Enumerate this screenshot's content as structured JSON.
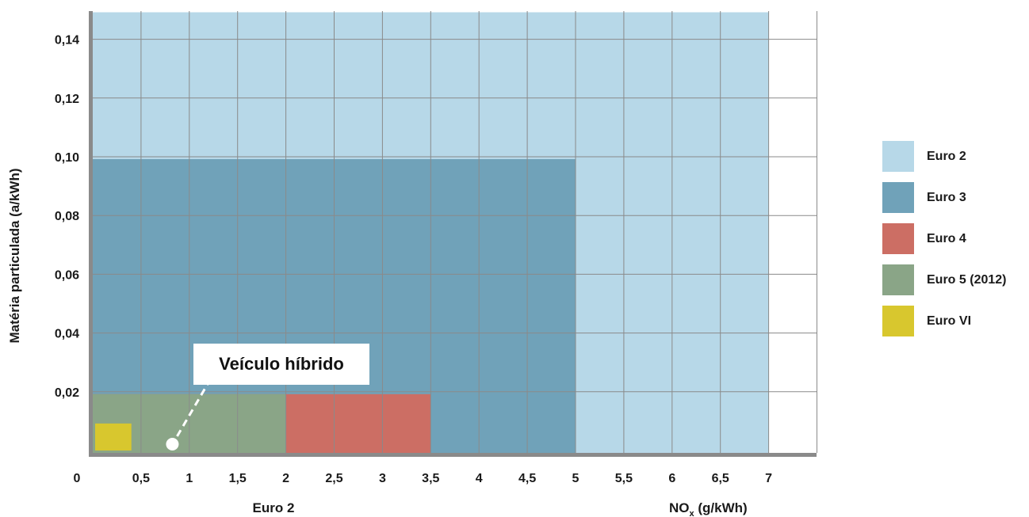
{
  "chart_data": {
    "type": "area",
    "title": "",
    "xlabel_main": "NO",
    "xlabel_sub": "x",
    "xlabel_rest": " (g/kWh)",
    "x_secondary_label": "Euro 2",
    "ylabel": "Matéria particulada (a/kWh)",
    "xlim": [
      0,
      7.5
    ],
    "ylim": [
      0,
      0.15
    ],
    "x_ticks": [
      "0",
      "0,5",
      "1",
      "1,5",
      "2",
      "2,5",
      "3",
      "3,5",
      "4",
      "4,5",
      "5",
      "5,5",
      "6",
      "6,5",
      "7"
    ],
    "y_ticks": [
      "0,02",
      "0,04",
      "0,06",
      "0,08",
      "0,10",
      "0,12",
      "0,14"
    ],
    "grid": true,
    "regions": [
      {
        "name": "Euro 2",
        "nox_max": 7.0,
        "pm_max": 0.15,
        "color": "#b7d8e8"
      },
      {
        "name": "Euro 3",
        "nox_max": 5.0,
        "pm_max": 0.1,
        "color": "#70a2b9"
      },
      {
        "name": "Euro 4",
        "nox_max": 3.5,
        "pm_max": 0.02,
        "color": "#cc6e64"
      },
      {
        "name": "Euro 5 (2012)",
        "nox_max": 2.0,
        "pm_max": 0.02,
        "color": "#8aa587"
      },
      {
        "name": "Euro VI",
        "nox_max": 0.4,
        "pm_max": 0.01,
        "color": "#d8c72e"
      }
    ],
    "points": [
      {
        "label": "Veículo híbrido",
        "nox": 0.8,
        "pm": 0.007
      }
    ],
    "legend_position": "right"
  },
  "legend": {
    "items": [
      {
        "label": "Euro 2",
        "color": "#b7d8e8"
      },
      {
        "label": "Euro 3",
        "color": "#70a2b9"
      },
      {
        "label": "Euro 4",
        "color": "#cc6e64"
      },
      {
        "label": "Euro 5 (2012)",
        "color": "#8aa587"
      },
      {
        "label": "Euro VI",
        "color": "#d8c72e"
      }
    ]
  },
  "annotation": {
    "label": "Veículo híbrido"
  }
}
